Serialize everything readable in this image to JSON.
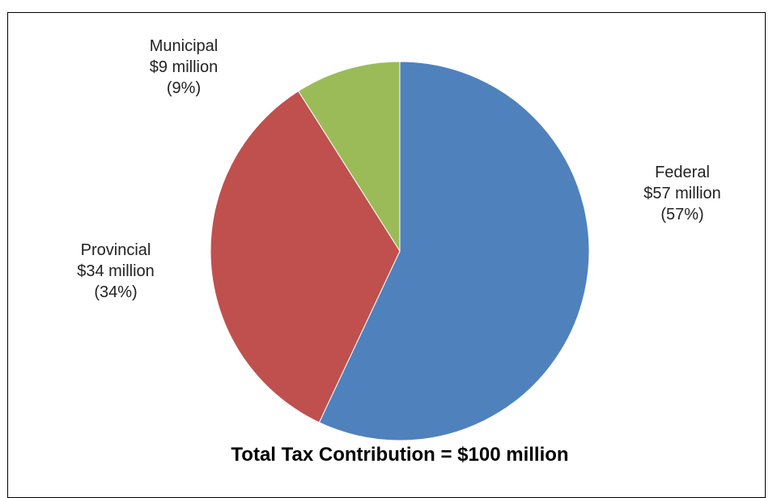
{
  "chart_data": {
    "type": "pie",
    "caption": "Total Tax Contribution = $100 million",
    "slices": [
      {
        "name": "Federal",
        "amount": "$57 million",
        "percent_label": "(57%)",
        "value": 57,
        "color": "#4F81BD"
      },
      {
        "name": "Provincial",
        "amount": "$34 million",
        "percent_label": "(34%)",
        "value": 34,
        "color": "#C0504D"
      },
      {
        "name": "Municipal",
        "amount": "$9 million",
        "percent_label": "(9%)",
        "value": 9,
        "color": "#9BBB59"
      }
    ],
    "start_angle": "12 o'clock",
    "direction": "clockwise",
    "legend": "none"
  }
}
